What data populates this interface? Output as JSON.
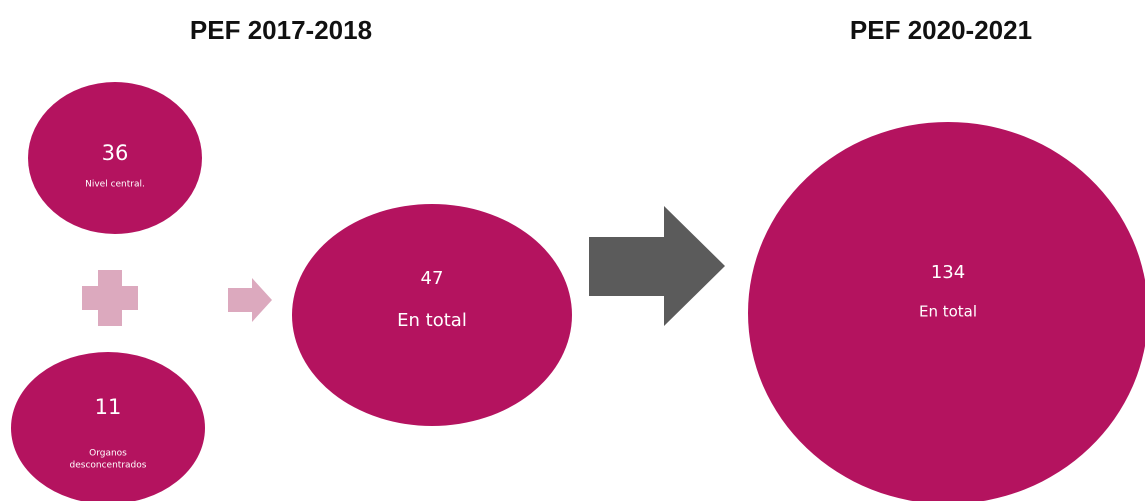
{
  "headings": [
    "PEF 2017-2018",
    "PEF 2020-2021"
  ],
  "nodes": [
    {
      "value": 36,
      "label": "Nivel central."
    },
    {
      "value": 11,
      "label": [
        "Organos",
        "desconcentrados"
      ]
    },
    {
      "value": 47,
      "label": "En total"
    },
    {
      "value": 134,
      "label": "En total"
    }
  ]
}
